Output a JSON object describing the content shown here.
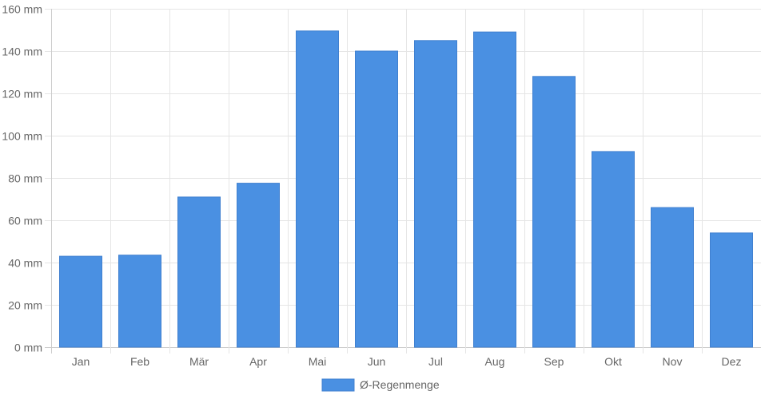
{
  "chart_data": {
    "type": "bar",
    "categories": [
      "Jan",
      "Feb",
      "Mär",
      "Apr",
      "Mai",
      "Jun",
      "Jul",
      "Aug",
      "Sep",
      "Okt",
      "Nov",
      "Dez"
    ],
    "series": [
      {
        "name": "Ø-Regenmenge",
        "values": [
          43,
          43.5,
          71,
          77.5,
          149.5,
          140,
          145,
          149,
          128,
          92.5,
          66,
          54
        ],
        "color": "#4a90e2"
      }
    ],
    "ylim": [
      0,
      160
    ],
    "ytick_step": 20,
    "yticks": [
      "0 mm",
      "20 mm",
      "40 mm",
      "60 mm",
      "80 mm",
      "100 mm",
      "120 mm",
      "140 mm",
      "160 mm"
    ],
    "grid": true,
    "legend_position": "bottom-center"
  }
}
